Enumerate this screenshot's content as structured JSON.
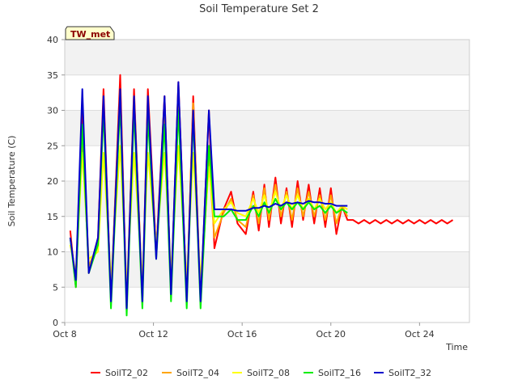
{
  "chart_data": {
    "type": "line",
    "title": "Soil Temperature Set 2",
    "xlabel": "Time",
    "ylabel": "Soil Temperature (C)",
    "badge": "TW_met",
    "x_unit": "date (Oct)",
    "xlim": [
      "Oct 8 00:00",
      "Oct 26 06:00"
    ],
    "ylim": [
      0,
      40
    ],
    "y_ticks": [
      "0",
      "5",
      "10",
      "15",
      "20",
      "25",
      "30",
      "35",
      "40"
    ],
    "x_ticks": [
      "Oct 8",
      "Oct 12",
      "Oct 16",
      "Oct 20",
      "Oct 24"
    ],
    "grid": "horizontal alternating bands",
    "legend_position": "bottom",
    "series": [
      {
        "name": "SoilT2_02",
        "color": "#ff0000",
        "x": [
          "Oct 8 06:00",
          "Oct 8 12:00",
          "Oct 8 19:00",
          "Oct 9 02:00",
          "Oct 9 12:00",
          "Oct 9 18:00",
          "Oct 10 02:00",
          "Oct 10 12:00",
          "Oct 10 19:00",
          "Oct 11 03:00",
          "Oct 11 12:00",
          "Oct 11 18:00",
          "Oct 12 03:00",
          "Oct 12 12:00",
          "Oct 12 19:00",
          "Oct 13 03:00",
          "Oct 13 12:00",
          "Oct 13 19:00",
          "Oct 14 03:00",
          "Oct 14 12:00",
          "Oct 14 18:00",
          "Oct 15 04:00",
          "Oct 15 12:00",
          "Oct 15 19:00",
          "Oct 16 04:00",
          "Oct 16 12:00",
          "Oct 16 18:00",
          "Oct 17 00:00",
          "Oct 17 05:00",
          "Oct 17 12:00",
          "Oct 17 18:00",
          "Oct 18 00:00",
          "Oct 18 06:00",
          "Oct 18 12:00",
          "Oct 18 18:00",
          "Oct 19 00:00",
          "Oct 19 06:00",
          "Oct 19 12:00",
          "Oct 19 18:00",
          "Oct 20 00:00",
          "Oct 20 06:00",
          "Oct 20 12:00",
          "Oct 20 18:00",
          "Oct 21 00:00",
          "Oct 21 06:00",
          "Oct 21 12:00",
          "Oct 21 18:00",
          "Oct 22 00:00",
          "Oct 22 06:00",
          "Oct 22 12:00",
          "Oct 22 18:00",
          "Oct 23 00:00",
          "Oct 23 06:00",
          "Oct 23 12:00",
          "Oct 23 18:00",
          "Oct 24 00:00",
          "Oct 24 06:00",
          "Oct 24 12:00",
          "Oct 24 18:00",
          "Oct 25 00:00",
          "Oct 25 06:00",
          "Oct 25 12:00"
        ],
        "y": [
          13,
          5,
          31,
          7,
          12,
          33,
          3,
          35,
          2,
          33,
          3,
          33,
          10,
          32,
          4,
          34,
          3,
          32,
          3,
          30,
          10.5,
          16,
          18.5,
          14,
          12.5,
          18.5,
          13,
          19.5,
          13.5,
          20.5,
          14,
          19,
          13.5,
          20,
          14.5,
          19.5,
          14,
          19,
          13.5,
          19,
          12.5,
          16.5,
          14.5,
          14.5,
          14,
          14.5,
          14,
          14.5,
          14,
          14.5,
          14,
          14.5,
          14,
          14.5,
          14,
          14.5,
          14,
          14.5,
          14,
          14.5,
          14,
          14.5
        ]
      },
      {
        "name": "SoilT2_04",
        "color": "#ffa500",
        "x": [
          "Oct 8 06:00",
          "Oct 8 12:00",
          "Oct 8 19:00",
          "Oct 9 02:00",
          "Oct 9 12:00",
          "Oct 9 18:00",
          "Oct 10 02:00",
          "Oct 10 12:00",
          "Oct 10 19:00",
          "Oct 11 03:00",
          "Oct 11 12:00",
          "Oct 11 18:00",
          "Oct 12 03:00",
          "Oct 12 12:00",
          "Oct 12 19:00",
          "Oct 13 03:00",
          "Oct 13 12:00",
          "Oct 13 19:00",
          "Oct 14 03:00",
          "Oct 14 12:00",
          "Oct 14 18:00",
          "Oct 15 04:00",
          "Oct 15 12:00",
          "Oct 15 19:00",
          "Oct 16 04:00",
          "Oct 16 12:00",
          "Oct 16 18:00",
          "Oct 17 00:00",
          "Oct 17 05:00",
          "Oct 17 12:00",
          "Oct 17 18:00",
          "Oct 18 00:00",
          "Oct 18 06:00",
          "Oct 18 12:00",
          "Oct 18 18:00",
          "Oct 19 00:00",
          "Oct 19 06:00",
          "Oct 19 12:00",
          "Oct 19 18:00",
          "Oct 20 00:00",
          "Oct 20 06:00",
          "Oct 20 12:00",
          "Oct 20 18:00"
        ],
        "y": [
          12,
          6,
          26,
          8,
          11,
          31,
          4,
          33,
          3,
          32,
          4,
          31,
          10,
          30,
          5,
          32,
          4,
          31,
          4,
          23,
          12,
          15.5,
          17.5,
          14.5,
          13.5,
          18,
          14,
          19,
          14.5,
          19.5,
          15,
          18.5,
          14.5,
          19,
          15,
          18.5,
          15,
          18,
          14.5,
          18,
          14,
          16.5,
          15
        ]
      },
      {
        "name": "SoilT2_08",
        "color": "#ffff00",
        "x": [
          "Oct 8 06:00",
          "Oct 8 12:00",
          "Oct 8 19:00",
          "Oct 9 02:00",
          "Oct 9 12:00",
          "Oct 9 18:00",
          "Oct 10 02:00",
          "Oct 10 12:00",
          "Oct 10 19:00",
          "Oct 11 03:00",
          "Oct 11 12:00",
          "Oct 11 18:00",
          "Oct 12 03:00",
          "Oct 12 12:00",
          "Oct 12 19:00",
          "Oct 13 03:00",
          "Oct 13 12:00",
          "Oct 13 19:00",
          "Oct 14 03:00",
          "Oct 14 12:00",
          "Oct 14 18:00",
          "Oct 15 04:00",
          "Oct 15 12:00",
          "Oct 15 19:00",
          "Oct 16 04:00",
          "Oct 16 12:00",
          "Oct 16 18:00",
          "Oct 17 00:00",
          "Oct 17 05:00",
          "Oct 17 12:00",
          "Oct 17 18:00",
          "Oct 18 00:00",
          "Oct 18 06:00",
          "Oct 18 12:00",
          "Oct 18 18:00",
          "Oct 19 00:00",
          "Oct 19 06:00",
          "Oct 19 12:00",
          "Oct 19 18:00",
          "Oct 20 00:00",
          "Oct 20 06:00",
          "Oct 20 12:00",
          "Oct 20 18:00"
        ],
        "y": [
          11,
          7,
          24,
          9,
          10,
          24,
          6,
          25,
          5,
          24,
          6,
          24,
          11,
          24,
          7,
          25,
          6,
          24,
          6,
          22,
          14,
          16,
          17,
          15.5,
          15,
          17.5,
          15.5,
          18,
          15.5,
          18.5,
          16,
          18,
          16,
          18,
          16,
          17.5,
          16,
          17.5,
          16,
          17,
          15.5,
          16.5,
          16
        ]
      },
      {
        "name": "SoilT2_16",
        "color": "#00ee00",
        "x": [
          "Oct 8 06:00",
          "Oct 8 12:00",
          "Oct 8 19:00",
          "Oct 9 02:00",
          "Oct 9 12:00",
          "Oct 9 18:00",
          "Oct 10 02:00",
          "Oct 10 12:00",
          "Oct 10 19:00",
          "Oct 11 03:00",
          "Oct 11 12:00",
          "Oct 11 18:00",
          "Oct 12 03:00",
          "Oct 12 12:00",
          "Oct 12 19:00",
          "Oct 13 03:00",
          "Oct 13 12:00",
          "Oct 13 19:00",
          "Oct 14 03:00",
          "Oct 14 12:00",
          "Oct 14 18:00",
          "Oct 15 04:00",
          "Oct 15 12:00",
          "Oct 15 19:00",
          "Oct 16 04:00",
          "Oct 16 12:00",
          "Oct 16 18:00",
          "Oct 17 00:00",
          "Oct 17 05:00",
          "Oct 17 12:00",
          "Oct 17 18:00",
          "Oct 18 00:00",
          "Oct 18 06:00",
          "Oct 18 12:00",
          "Oct 18 18:00",
          "Oct 19 00:00",
          "Oct 19 06:00",
          "Oct 19 12:00",
          "Oct 19 18:00",
          "Oct 20 00:00",
          "Oct 20 06:00",
          "Oct 20 12:00",
          "Oct 20 18:00"
        ],
        "y": [
          12,
          5,
          28,
          7,
          11,
          30,
          2,
          31,
          1,
          30,
          2,
          29,
          9,
          28,
          3,
          30,
          2,
          29,
          2,
          25,
          15,
          15,
          16,
          14.5,
          14.5,
          16.5,
          15,
          17,
          15.5,
          17.5,
          16,
          17,
          16,
          17,
          16,
          17,
          16,
          16.5,
          15.5,
          16.5,
          15.5,
          16,
          15.5
        ]
      },
      {
        "name": "SoilT2_32",
        "color": "#0000cc",
        "x": [
          "Oct 8 06:00",
          "Oct 8 12:00",
          "Oct 8 19:00",
          "Oct 9 02:00",
          "Oct 9 12:00",
          "Oct 9 18:00",
          "Oct 10 02:00",
          "Oct 10 12:00",
          "Oct 10 19:00",
          "Oct 11 03:00",
          "Oct 11 12:00",
          "Oct 11 18:00",
          "Oct 12 03:00",
          "Oct 12 12:00",
          "Oct 12 19:00",
          "Oct 13 03:00",
          "Oct 13 12:00",
          "Oct 13 19:00",
          "Oct 14 03:00",
          "Oct 14 12:00",
          "Oct 14 18:00",
          "Oct 15 04:00",
          "Oct 15 12:00",
          "Oct 15 19:00",
          "Oct 16 04:00",
          "Oct 16 12:00",
          "Oct 16 18:00",
          "Oct 17 00:00",
          "Oct 17 05:00",
          "Oct 17 12:00",
          "Oct 17 18:00",
          "Oct 18 00:00",
          "Oct 18 06:00",
          "Oct 18 12:00",
          "Oct 18 18:00",
          "Oct 19 00:00",
          "Oct 19 06:00",
          "Oct 19 12:00",
          "Oct 19 18:00",
          "Oct 20 00:00",
          "Oct 20 06:00",
          "Oct 20 12:00",
          "Oct 20 18:00"
        ],
        "y": [
          12,
          6,
          33,
          7,
          12,
          32,
          3,
          33,
          2,
          32,
          3,
          32,
          9,
          32,
          4,
          34,
          3,
          30,
          3,
          30,
          16,
          16,
          16,
          15.8,
          15.8,
          16.2,
          16.2,
          16.5,
          16.3,
          16.8,
          16.5,
          17,
          16.8,
          17,
          16.8,
          17.2,
          17,
          17,
          16.8,
          16.8,
          16.5,
          16.5,
          16.5
        ]
      }
    ]
  }
}
